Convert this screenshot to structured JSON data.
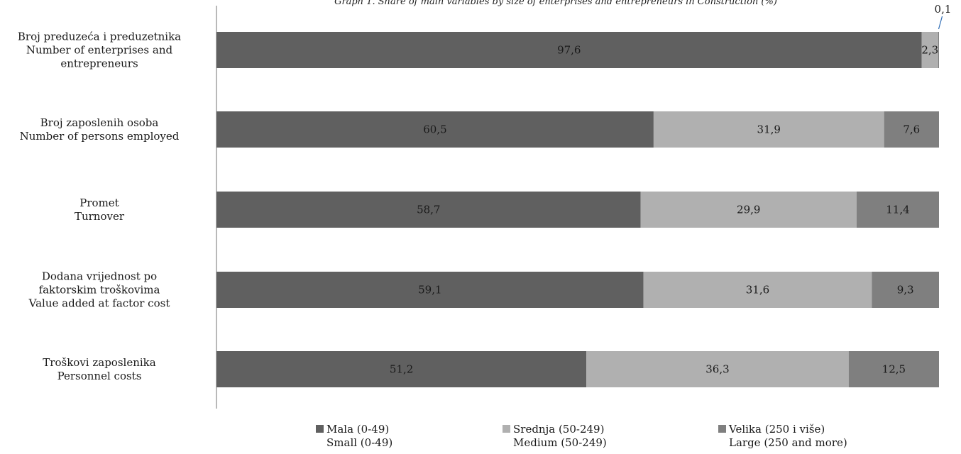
{
  "chart_data": {
    "type": "bar",
    "orientation": "horizontal",
    "stacked": true,
    "title": "Graph 1. Share of main variables by size of enterprises and entrepreneurs in Construction (%)",
    "categories": [
      [
        "Broj preduzeća i preduzetnika",
        "Number of enterprises and",
        "entrepreneurs"
      ],
      [
        "Broj zaposlenih osoba",
        "Number of persons employed"
      ],
      [
        "Promet",
        "Turnover"
      ],
      [
        "Dodana vrijednost po",
        "faktorskim troškovima",
        "Value added at factor cost"
      ],
      [
        "Troškovi zaposlenika",
        "Personnel costs"
      ]
    ],
    "series": [
      {
        "name": "Mala (0-49)",
        "name2": "Small (0-49)",
        "color": "#606060",
        "values": [
          97.6,
          60.5,
          58.7,
          59.1,
          51.2
        ],
        "labels": [
          "97,6",
          "60,5",
          "58,7",
          "59,1",
          "51,2"
        ]
      },
      {
        "name": "Srednja (50-249)",
        "name2": "Medium (50-249)",
        "color": "#b0b0b0",
        "values": [
          2.3,
          31.9,
          29.9,
          31.6,
          36.3
        ],
        "labels": [
          "2,3",
          "31,9",
          "29,9",
          "31,6",
          "36,3"
        ]
      },
      {
        "name": "Velika (250 i više)",
        "name2": "Large (250 and more)",
        "color": "#7f7f7f",
        "values": [
          0.1,
          7.6,
          11.4,
          9.3,
          12.5
        ],
        "labels": [
          "0,1",
          "7,6",
          "11,4",
          "9,3",
          "12,5"
        ]
      }
    ],
    "xlim": [
      0,
      100
    ],
    "legend_position": "bottom",
    "grid": false
  }
}
